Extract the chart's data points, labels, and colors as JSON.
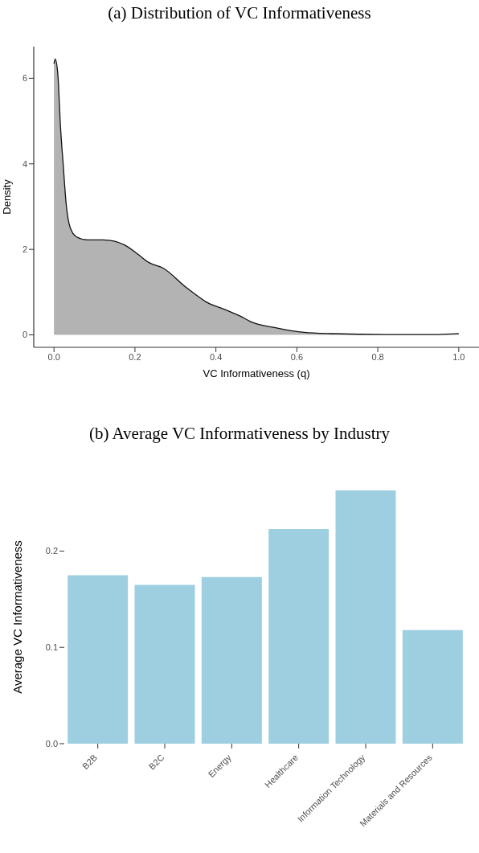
{
  "chart_data": [
    {
      "type": "area",
      "title": "(a) Distribution of VC Informativeness",
      "xlabel": "VC Informativeness (q)",
      "ylabel": "Density",
      "color": "#b3b3b3",
      "x": [
        0,
        0.003,
        0.0096,
        0.016,
        0.023,
        0.03,
        0.04,
        0.056,
        0.083,
        0.122,
        0.175,
        0.208,
        0.235,
        0.268,
        0.328,
        0.38,
        0.42,
        0.46,
        0.486,
        0.552,
        0.618,
        0.685,
        0.82,
        0.95,
        1.0
      ],
      "values": [
        6.34,
        6.45,
        6.08,
        4.88,
        3.95,
        3.07,
        2.51,
        2.29,
        2.22,
        2.22,
        2.1,
        1.88,
        1.69,
        1.57,
        1.1,
        0.75,
        0.6,
        0.44,
        0.31,
        0.16,
        0.06,
        0.03,
        0.01,
        0.01,
        0.03
      ],
      "xlim": [
        -0.05,
        1.05
      ],
      "ylim": [
        -0.29,
        6.74
      ],
      "xticks": [
        {
          "value": 0,
          "label": "0.0"
        },
        0.2,
        0.4,
        0.6,
        0.8,
        {
          "value": 1,
          "label": "1.0"
        }
      ],
      "yticks": [
        0,
        2,
        4,
        6
      ],
      "grid": false
    },
    {
      "type": "bar",
      "title": "(b) Average VC Informativeness by Industry",
      "ylabel": "Average VC Informativeness",
      "color": "#9ecfe0",
      "categories": [
        "B2B",
        "B2C",
        "Energy",
        "Healthcare",
        "Information Technology",
        "Materials and Resources"
      ],
      "values": [
        0.175,
        0.165,
        0.173,
        0.223,
        0.263,
        0.118
      ],
      "ylim": [
        0,
        0.263
      ],
      "yticks": [
        {
          "value": 0,
          "label": "0.0"
        },
        0.1,
        0.2
      ],
      "grid": false
    }
  ]
}
